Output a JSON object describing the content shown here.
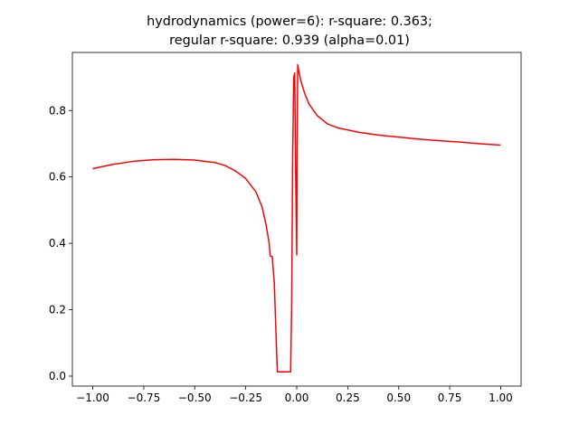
{
  "chart_data": {
    "type": "line",
    "title": [
      "hydrodynamics (power=6): r-square: 0.363;",
      "regular r-square: 0.939 (alpha=0.01)"
    ],
    "xlabel": "",
    "ylabel": "",
    "xlim": [
      -1.1,
      1.1
    ],
    "ylim": [
      -0.03,
      0.975
    ],
    "grid": false,
    "legend": "none",
    "x_ticks": [
      {
        "value": -1.0,
        "label": "−1.00"
      },
      {
        "value": -0.75,
        "label": "−0.75"
      },
      {
        "value": -0.5,
        "label": "−0.50"
      },
      {
        "value": -0.25,
        "label": "−0.25"
      },
      {
        "value": 0.0,
        "label": "0.00"
      },
      {
        "value": 0.25,
        "label": "0.25"
      },
      {
        "value": 0.5,
        "label": "0.50"
      },
      {
        "value": 0.75,
        "label": "0.75"
      },
      {
        "value": 1.0,
        "label": "1.00"
      }
    ],
    "y_ticks": [
      {
        "value": 0.0,
        "label": "0.0"
      },
      {
        "value": 0.2,
        "label": "0.2"
      },
      {
        "value": 0.4,
        "label": "0.4"
      },
      {
        "value": 0.6,
        "label": "0.6"
      },
      {
        "value": 0.8,
        "label": "0.8"
      }
    ],
    "series": [
      {
        "color": "#ff0000",
        "x": [
          -1.0,
          -0.9,
          -0.8,
          -0.7,
          -0.6,
          -0.5,
          -0.4,
          -0.35,
          -0.3,
          -0.25,
          -0.2,
          -0.17,
          -0.15,
          -0.135,
          -0.13,
          -0.12,
          -0.11,
          -0.1,
          -0.095,
          -0.09,
          -0.085,
          -0.08,
          -0.07,
          -0.06,
          -0.05,
          -0.04,
          -0.03,
          -0.025,
          -0.02,
          -0.015,
          -0.01,
          -0.005,
          0.0,
          0.002,
          0.005,
          0.01,
          0.02,
          0.04,
          0.06,
          0.1,
          0.15,
          0.2,
          0.3,
          0.4,
          0.5,
          0.6,
          0.7,
          0.8,
          0.9,
          1.0
        ],
        "y": [
          0.625,
          0.638,
          0.647,
          0.652,
          0.653,
          0.651,
          0.643,
          0.634,
          0.618,
          0.595,
          0.555,
          0.51,
          0.455,
          0.4,
          0.362,
          0.36,
          0.28,
          0.1,
          0.013,
          0.013,
          0.013,
          0.013,
          0.013,
          0.013,
          0.013,
          0.013,
          0.013,
          0.2,
          0.65,
          0.9,
          0.913,
          0.6,
          0.365,
          0.7,
          0.938,
          0.92,
          0.89,
          0.85,
          0.82,
          0.785,
          0.76,
          0.748,
          0.735,
          0.726,
          0.72,
          0.714,
          0.709,
          0.705,
          0.7,
          0.696
        ]
      }
    ]
  }
}
